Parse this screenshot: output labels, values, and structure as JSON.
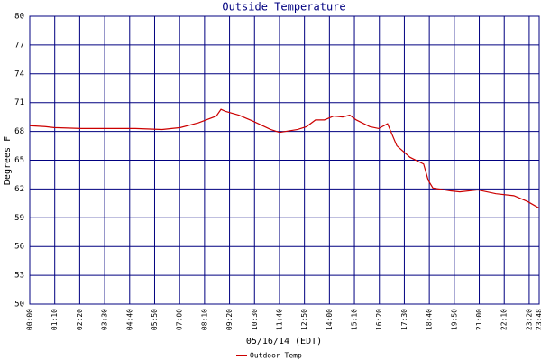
{
  "chart_data": {
    "type": "line",
    "title": "Outside Temperature",
    "y_label": "Degrees F",
    "x_label": "05/16/14 (EDT)",
    "x": [
      0,
      43,
      68,
      144,
      220,
      296,
      371,
      422,
      473,
      523,
      536,
      548,
      586,
      624,
      675,
      700,
      751,
      776,
      801,
      826,
      852,
      877,
      897,
      915,
      953,
      978,
      1003,
      1029,
      1066,
      1104,
      1117,
      1130,
      1180,
      1205,
      1256,
      1307,
      1357,
      1395,
      1428
    ],
    "series": [
      {
        "name": "Outdoor Temp",
        "color": "#cc0000",
        "values": [
          68.6,
          68.5,
          68.4,
          68.3,
          68.3,
          68.3,
          68.2,
          68.4,
          68.9,
          69.6,
          70.3,
          70.1,
          69.7,
          69.1,
          68.2,
          67.9,
          68.2,
          68.5,
          69.2,
          69.2,
          69.6,
          69.5,
          69.7,
          69.2,
          68.5,
          68.3,
          68.8,
          66.5,
          65.3,
          64.6,
          62.9,
          62.1,
          61.8,
          61.7,
          61.9,
          61.5,
          61.3,
          60.7,
          60.0
        ]
      }
    ],
    "xlim": [
      0,
      1428
    ],
    "xticks": [
      {
        "value": 0,
        "label": "00:00"
      },
      {
        "value": 70,
        "label": "01:10"
      },
      {
        "value": 140,
        "label": "02:20"
      },
      {
        "value": 210,
        "label": "03:30"
      },
      {
        "value": 280,
        "label": "04:40"
      },
      {
        "value": 350,
        "label": "05:50"
      },
      {
        "value": 420,
        "label": "07:00"
      },
      {
        "value": 490,
        "label": "08:10"
      },
      {
        "value": 560,
        "label": "09:20"
      },
      {
        "value": 630,
        "label": "10:30"
      },
      {
        "value": 700,
        "label": "11:40"
      },
      {
        "value": 770,
        "label": "12:50"
      },
      {
        "value": 840,
        "label": "14:00"
      },
      {
        "value": 910,
        "label": "15:10"
      },
      {
        "value": 980,
        "label": "16:20"
      },
      {
        "value": 1050,
        "label": "17:30"
      },
      {
        "value": 1120,
        "label": "18:40"
      },
      {
        "value": 1190,
        "label": "19:50"
      },
      {
        "value": 1260,
        "label": "21:00"
      },
      {
        "value": 1330,
        "label": "22:10"
      },
      {
        "value": 1400,
        "label": "23:20"
      },
      {
        "value": 1428,
        "label": "23:48"
      }
    ],
    "ylim": [
      50,
      80
    ],
    "yticks": [
      50,
      53,
      56,
      59,
      62,
      65,
      68,
      71,
      74,
      77,
      80
    ],
    "grid": true,
    "grid_color": "#000080"
  }
}
